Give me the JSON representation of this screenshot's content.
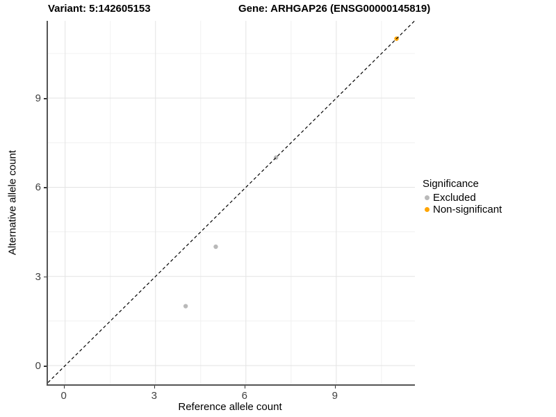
{
  "chart_data": {
    "type": "scatter",
    "title_left": "Variant: 5:142605153",
    "title_right": "Gene: ARHGAP26 (ENSG00000145819)",
    "xlabel": "Reference allele count",
    "ylabel": "Alternative allele count",
    "xlim": [
      -0.57,
      11.61
    ],
    "ylim": [
      -0.63,
      11.6
    ],
    "x_ticks": [
      0,
      3,
      6,
      9
    ],
    "y_ticks": [
      0,
      3,
      6,
      9
    ],
    "x_minor_gridlines": [
      1.5,
      4.5,
      7.5,
      10.5
    ],
    "y_minor_gridlines": [
      1.5,
      4.5,
      7.5,
      10.5
    ],
    "grid": "on",
    "colors": {
      "major_gridline": "#e3e3e3",
      "minor_gridline": "#f1f1f1",
      "axis_line": "#545454",
      "tick_text": "#404040"
    },
    "series": [
      {
        "name": "Excluded",
        "color": "#b9b9b9",
        "points": [
          [
            4,
            2
          ],
          [
            5,
            4
          ],
          [
            7,
            7
          ]
        ]
      },
      {
        "name": "Non-significant",
        "color": "#ffa500",
        "points": [
          [
            11,
            11
          ]
        ]
      }
    ],
    "identity_line": {
      "slope": 1,
      "intercept": 0,
      "style": "dashed",
      "color": "#000000"
    },
    "legend": {
      "title": "Significance",
      "position": "right"
    }
  }
}
